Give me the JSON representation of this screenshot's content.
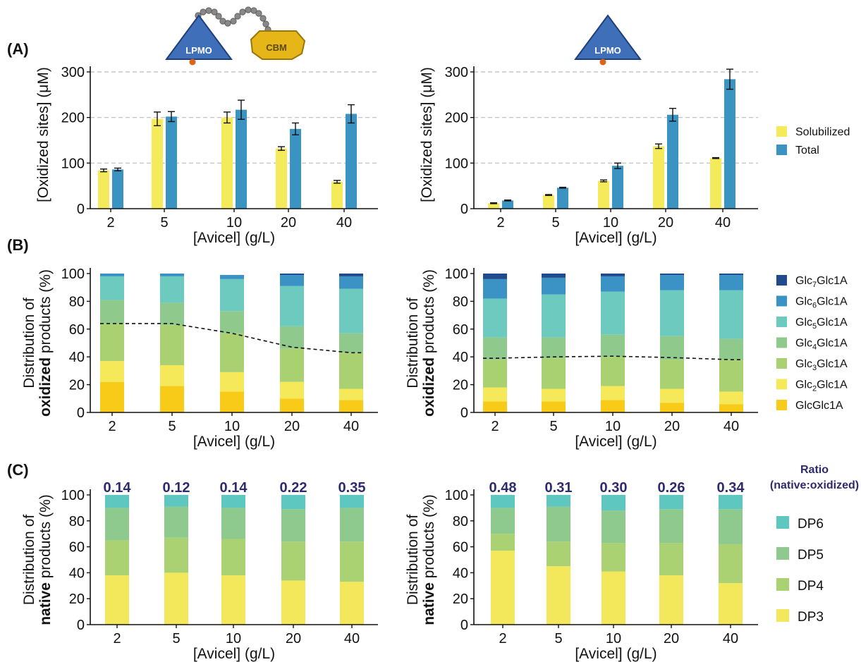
{
  "panels": {
    "A": "(A)",
    "B": "(B)",
    "C": "(C)"
  },
  "enzyme_labels": {
    "lpmo": "LPMO",
    "cbm": "CBM"
  },
  "colors": {
    "solubilized": "#f4ea5a",
    "total": "#3a93c0",
    "GlcGlc1A": "#f7cb17",
    "Glc2Glc1A": "#f5e95a",
    "Glc3Glc1A": "#a9d172",
    "Glc4Glc1A": "#8fc98c",
    "Glc5Glc1A": "#6ccabf",
    "Glc6Glc1A": "#3a93c4",
    "Glc7Glc1A": "#1f4a8b",
    "DP3": "#f3e85c",
    "DP4": "#aad273",
    "DP5": "#8ec98d",
    "DP6": "#5ec8c0",
    "ratio_text": "#2e2a6e",
    "grid": "#bbbbbb"
  },
  "legend_A": [
    "Solubilized",
    "Total"
  ],
  "legend_B": [
    {
      "pre": "Glc",
      "sub": "7",
      "post": "Glc1A",
      "key": "Glc7Glc1A"
    },
    {
      "pre": "Glc",
      "sub": "6",
      "post": "Glc1A",
      "key": "Glc6Glc1A"
    },
    {
      "pre": "Glc",
      "sub": "5",
      "post": "Glc1A",
      "key": "Glc5Glc1A"
    },
    {
      "pre": "Glc",
      "sub": "4",
      "post": "Glc1A",
      "key": "Glc4Glc1A"
    },
    {
      "pre": "Glc",
      "sub": "3",
      "post": "Glc1A",
      "key": "Glc3Glc1A"
    },
    {
      "pre": "Glc",
      "sub": "2",
      "post": "Glc1A",
      "key": "Glc2Glc1A"
    },
    {
      "pre": "GlcGlc1A",
      "sub": "",
      "post": "",
      "key": "GlcGlc1A"
    }
  ],
  "legend_C": {
    "header": [
      "Ratio",
      "(native:oxidized)"
    ],
    "items": [
      "DP6",
      "DP5",
      "DP4",
      "DP3"
    ]
  },
  "chart_data": [
    {
      "id": "A-left",
      "type": "bar",
      "panel": "A",
      "categories": [
        "2",
        "5",
        "10",
        "20",
        "40"
      ],
      "xlabel": "[Avicel] (g/L)",
      "ylabel": "[Oxidized sites] (μM)",
      "ylim": [
        0,
        300
      ],
      "yticks": [
        0,
        100,
        200,
        300
      ],
      "grid": true,
      "series": [
        {
          "name": "Solubilized",
          "values": [
            84,
            197,
            200,
            132,
            59
          ],
          "errors": [
            3,
            15,
            12,
            4,
            3
          ]
        },
        {
          "name": "Total",
          "values": [
            86,
            202,
            217,
            175,
            208
          ],
          "errors": [
            3,
            11,
            21,
            13,
            20
          ]
        }
      ]
    },
    {
      "id": "A-right",
      "type": "bar",
      "panel": "A",
      "categories": [
        "2",
        "5",
        "10",
        "20",
        "40"
      ],
      "xlabel": "[Avicel] (g/L)",
      "ylabel": "[Oxidized sites] (μM)",
      "ylim": [
        0,
        300
      ],
      "yticks": [
        0,
        100,
        200,
        300
      ],
      "grid": true,
      "series": [
        {
          "name": "Solubilized",
          "values": [
            12,
            30,
            61,
            137,
            111
          ],
          "errors": [
            1,
            1,
            2,
            5,
            1
          ]
        },
        {
          "name": "Total",
          "values": [
            18,
            46,
            94,
            206,
            284
          ],
          "errors": [
            1,
            1,
            6,
            14,
            22
          ]
        }
      ]
    },
    {
      "id": "B-left",
      "type": "stacked-bar",
      "panel": "B",
      "categories": [
        "2",
        "5",
        "10",
        "20",
        "40"
      ],
      "xlabel": "[Avicel] (g/L)",
      "ylabel_pre": "Distribution of",
      "ylabel_bold": "oxidized",
      "ylabel_post": "products (%)",
      "ylim": [
        0,
        100
      ],
      "yticks": [
        0,
        20,
        40,
        60,
        80,
        100
      ],
      "series": [
        {
          "name": "GlcGlc1A",
          "values": [
            22,
            19,
            15,
            10,
            9
          ]
        },
        {
          "name": "Glc2Glc1A",
          "values": [
            15,
            15,
            14,
            12,
            8
          ]
        },
        {
          "name": "Glc3Glc1A",
          "values": [
            27,
            29,
            28,
            24,
            26
          ]
        },
        {
          "name": "Glc4Glc1A",
          "values": [
            17,
            16,
            16,
            16,
            14
          ]
        },
        {
          "name": "Glc5Glc1A",
          "values": [
            17,
            19,
            23,
            29,
            32
          ]
        },
        {
          "name": "Glc6Glc1A",
          "values": [
            2,
            2,
            3,
            8,
            9
          ]
        },
        {
          "name": "Glc7Glc1A",
          "values": [
            0,
            0,
            0,
            1,
            2
          ]
        }
      ],
      "dashed_line": [
        64,
        64,
        57,
        47,
        43
      ]
    },
    {
      "id": "B-right",
      "type": "stacked-bar",
      "panel": "B",
      "categories": [
        "2",
        "5",
        "10",
        "20",
        "40"
      ],
      "xlabel": "[Avicel] (g/L)",
      "ylabel_pre": "Distribution of",
      "ylabel_bold": "oxidized",
      "ylabel_post": "products (%)",
      "ylim": [
        0,
        100
      ],
      "yticks": [
        0,
        20,
        40,
        60,
        80,
        100
      ],
      "series": [
        {
          "name": "GlcGlc1A",
          "values": [
            8,
            8,
            9,
            7,
            6
          ]
        },
        {
          "name": "Glc2Glc1A",
          "values": [
            10,
            9,
            10,
            10,
            9
          ]
        },
        {
          "name": "Glc3Glc1A",
          "values": [
            20,
            22,
            21,
            21,
            23
          ]
        },
        {
          "name": "Glc4Glc1A",
          "values": [
            16,
            15,
            16,
            17,
            15
          ]
        },
        {
          "name": "Glc5Glc1A",
          "values": [
            28,
            31,
            31,
            33,
            35
          ]
        },
        {
          "name": "Glc6Glc1A",
          "values": [
            14,
            12,
            11,
            11,
            11
          ]
        },
        {
          "name": "Glc7Glc1A",
          "values": [
            4,
            3,
            2,
            1,
            1
          ]
        }
      ],
      "dashed_line": [
        39,
        40,
        40.5,
        39.5,
        38
      ]
    },
    {
      "id": "C-left",
      "type": "stacked-bar",
      "panel": "C",
      "categories": [
        "2",
        "5",
        "10",
        "20",
        "40"
      ],
      "xlabel": "[Avicel] (g/L)",
      "ylabel_pre": "Distribution of",
      "ylabel_bold": "native",
      "ylabel_post": "products (%)",
      "ylim": [
        0,
        100
      ],
      "yticks": [
        0,
        20,
        40,
        60,
        80,
        100
      ],
      "ratios": [
        "0.14",
        "0.12",
        "0.14",
        "0.22",
        "0.35"
      ],
      "series": [
        {
          "name": "DP3",
          "values": [
            38,
            40,
            38,
            34,
            33
          ]
        },
        {
          "name": "DP4",
          "values": [
            27,
            27,
            28,
            30,
            31
          ]
        },
        {
          "name": "DP5",
          "values": [
            25,
            24,
            24,
            25,
            26
          ]
        },
        {
          "name": "DP6",
          "values": [
            10,
            9,
            10,
            11,
            10
          ]
        }
      ]
    },
    {
      "id": "C-right",
      "type": "stacked-bar",
      "panel": "C",
      "categories": [
        "2",
        "5",
        "10",
        "20",
        "40"
      ],
      "xlabel": "[Avicel] (g/L)",
      "ylabel_pre": "Distribution of",
      "ylabel_bold": "native",
      "ylabel_post": "products (%)",
      "ylim": [
        0,
        100
      ],
      "yticks": [
        0,
        20,
        40,
        60,
        80,
        100
      ],
      "ratios": [
        "0.48",
        "0.31",
        "0.30",
        "0.26",
        "0.34"
      ],
      "series": [
        {
          "name": "DP3",
          "values": [
            57,
            45,
            41,
            38,
            32
          ]
        },
        {
          "name": "DP4",
          "values": [
            13,
            19,
            22,
            25,
            30
          ]
        },
        {
          "name": "DP5",
          "values": [
            20,
            27,
            25,
            26,
            27
          ]
        },
        {
          "name": "DP6",
          "values": [
            10,
            9,
            12,
            11,
            11
          ]
        }
      ]
    }
  ]
}
